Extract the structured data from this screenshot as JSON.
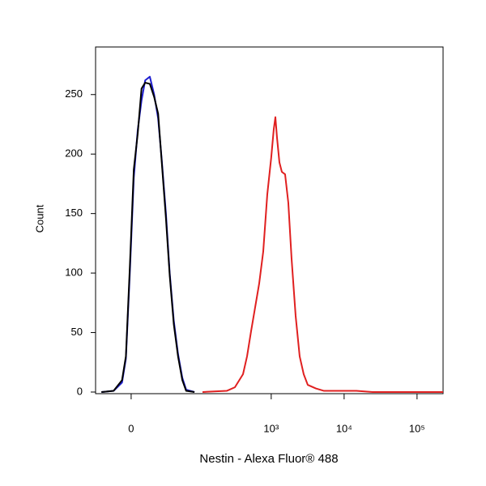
{
  "chart_data": {
    "type": "line",
    "xscale": "biexponential",
    "x_label": "Nestin - Alexa Fluor® 488",
    "y_label": "Count",
    "xlim": [
      -33,
      227500
    ],
    "ylim": [
      0,
      290
    ],
    "xticks": [
      0,
      {
        "value": 1000,
        "label": "10³"
      },
      {
        "value": 10000,
        "label": "10⁴"
      },
      {
        "value": 100000,
        "label": "10⁵"
      }
    ],
    "yticks": [
      0,
      50,
      100,
      150,
      200,
      250
    ],
    "series": [
      {
        "name": "Blue",
        "color": "#1f1fd0",
        "x": [
          -26,
          -14,
          -7,
          -4,
          -1,
          2,
          5,
          8,
          11,
          15,
          19,
          23,
          27,
          32,
          37,
          43,
          50,
          58,
          66,
          87
        ],
        "values": [
          0,
          1,
          8,
          28,
          100,
          180,
          220,
          245,
          262,
          265,
          250,
          230,
          195,
          150,
          100,
          60,
          32,
          12,
          2,
          0
        ]
      },
      {
        "name": "Black",
        "color": "#000000",
        "x": [
          -26,
          -14,
          -7,
          -4,
          -1,
          2,
          5,
          8,
          11,
          15,
          19,
          23,
          27,
          32,
          37,
          43,
          50,
          58,
          66,
          87
        ],
        "values": [
          0,
          1,
          10,
          30,
          105,
          187,
          217,
          255,
          260,
          259,
          248,
          234,
          193,
          146,
          98,
          57,
          30,
          10,
          1,
          0
        ]
      },
      {
        "name": "Red",
        "color": "#e02020",
        "x": [
          113,
          245,
          317,
          410,
          466,
          529,
          601,
          683,
          777,
          883,
          1000,
          1084,
          1141,
          1200,
          1296,
          1400,
          1550,
          1717,
          1903,
          2163,
          2456,
          2791,
          3172,
          4097,
          5292,
          8830,
          14740,
          24580,
          227500
        ],
        "values": [
          0,
          1,
          4,
          15,
          30,
          51,
          71,
          91,
          118,
          166,
          197,
          221,
          231,
          214,
          193,
          185,
          183,
          159,
          112,
          64,
          30,
          15,
          6,
          3,
          1,
          1,
          1,
          0,
          0
        ]
      }
    ]
  }
}
